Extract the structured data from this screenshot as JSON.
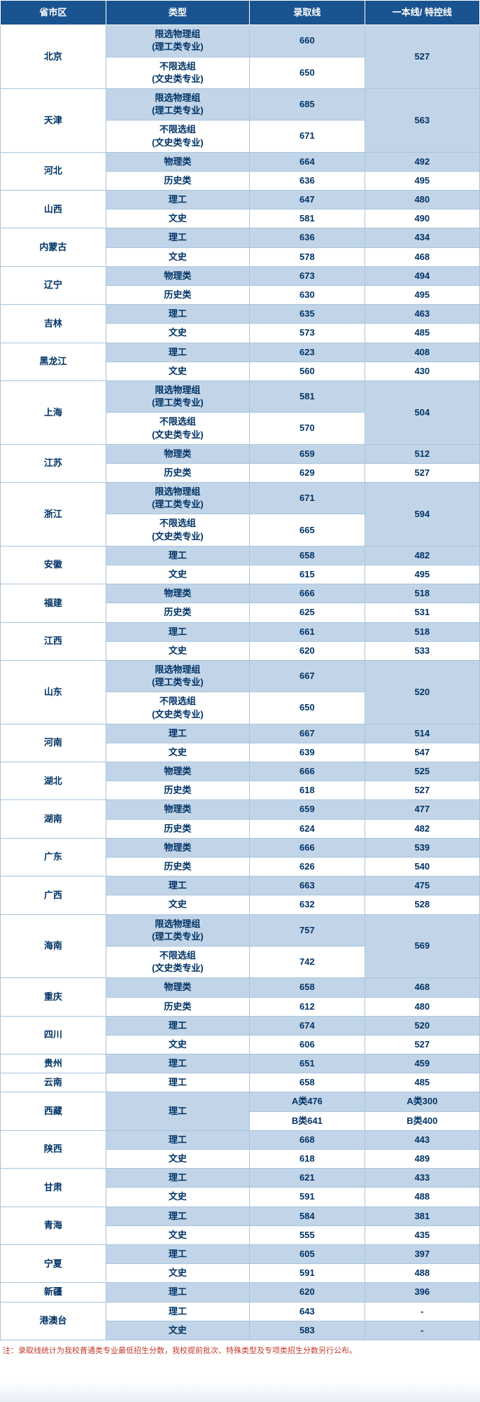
{
  "headers": {
    "province": "省市区",
    "type": "类型",
    "score": "录取线",
    "line": "一本线/\n特控线"
  },
  "note": "注：录取线统计为我校普通类专业最低招生分数，我校提前批次、特殊类型及专项类招生分数另行公布。",
  "rows": [
    {
      "province": "北京",
      "type": "限选物理组\n(理工类专业)",
      "score": "660",
      "line": "527",
      "span": 2,
      "shade": true
    },
    {
      "type": "不限选组\n(文史类专业)",
      "score": "650",
      "shade": false
    },
    {
      "province": "天津",
      "type": "限选物理组\n(理工类专业)",
      "score": "685",
      "line": "563",
      "span": 2,
      "shade": true
    },
    {
      "type": "不限选组\n(文史类专业)",
      "score": "671",
      "shade": false
    },
    {
      "province": "河北",
      "type": "物理类",
      "score": "664",
      "line": "492",
      "span": 2,
      "shade": true
    },
    {
      "type": "历史类",
      "score": "636",
      "line": "495",
      "shade": false
    },
    {
      "province": "山西",
      "type": "理工",
      "score": "647",
      "line": "480",
      "span": 2,
      "shade": true
    },
    {
      "type": "文史",
      "score": "581",
      "line": "490",
      "shade": false
    },
    {
      "province": "内蒙古",
      "type": "理工",
      "score": "636",
      "line": "434",
      "span": 2,
      "shade": true
    },
    {
      "type": "文史",
      "score": "578",
      "line": "468",
      "shade": false
    },
    {
      "province": "辽宁",
      "type": "物理类",
      "score": "673",
      "line": "494",
      "span": 2,
      "shade": true
    },
    {
      "type": "历史类",
      "score": "630",
      "line": "495",
      "shade": false
    },
    {
      "province": "吉林",
      "type": "理工",
      "score": "635",
      "line": "463",
      "span": 2,
      "shade": true
    },
    {
      "type": "文史",
      "score": "573",
      "line": "485",
      "shade": false
    },
    {
      "province": "黑龙江",
      "type": "理工",
      "score": "623",
      "line": "408",
      "span": 2,
      "shade": true
    },
    {
      "type": "文史",
      "score": "560",
      "line": "430",
      "shade": false
    },
    {
      "province": "上海",
      "type": "限选物理组\n(理工类专业)",
      "score": "581",
      "line": "504",
      "span": 2,
      "shade": true
    },
    {
      "type": "不限选组\n(文史类专业)",
      "score": "570",
      "shade": false
    },
    {
      "province": "江苏",
      "type": "物理类",
      "score": "659",
      "line": "512",
      "span": 2,
      "shade": true
    },
    {
      "type": "历史类",
      "score": "629",
      "line": "527",
      "shade": false
    },
    {
      "province": "浙江",
      "type": "限选物理组\n(理工类专业)",
      "score": "671",
      "line": "594",
      "span": 2,
      "shade": true
    },
    {
      "type": "不限选组\n(文史类专业)",
      "score": "665",
      "shade": false
    },
    {
      "province": "安徽",
      "type": "理工",
      "score": "658",
      "line": "482",
      "span": 2,
      "shade": true
    },
    {
      "type": "文史",
      "score": "615",
      "line": "495",
      "shade": false
    },
    {
      "province": "福建",
      "type": "物理类",
      "score": "666",
      "line": "518",
      "span": 2,
      "shade": true
    },
    {
      "type": "历史类",
      "score": "625",
      "line": "531",
      "shade": false
    },
    {
      "province": "江西",
      "type": "理工",
      "score": "661",
      "line": "518",
      "span": 2,
      "shade": true
    },
    {
      "type": "文史",
      "score": "620",
      "line": "533",
      "shade": false
    },
    {
      "province": "山东",
      "type": "限选物理组\n(理工类专业)",
      "score": "667",
      "line": "520",
      "span": 2,
      "shade": true
    },
    {
      "type": "不限选组\n(文史类专业)",
      "score": "650",
      "shade": false
    },
    {
      "province": "河南",
      "type": "理工",
      "score": "667",
      "line": "514",
      "span": 2,
      "shade": true
    },
    {
      "type": "文史",
      "score": "639",
      "line": "547",
      "shade": false
    },
    {
      "province": "湖北",
      "type": "物理类",
      "score": "666",
      "line": "525",
      "span": 2,
      "shade": true
    },
    {
      "type": "历史类",
      "score": "618",
      "line": "527",
      "shade": false
    },
    {
      "province": "湖南",
      "type": "物理类",
      "score": "659",
      "line": "477",
      "span": 2,
      "shade": true
    },
    {
      "type": "历史类",
      "score": "624",
      "line": "482",
      "shade": false
    },
    {
      "province": "广东",
      "type": "物理类",
      "score": "666",
      "line": "539",
      "span": 2,
      "shade": true
    },
    {
      "type": "历史类",
      "score": "626",
      "line": "540",
      "shade": false
    },
    {
      "province": "广西",
      "type": "理工",
      "score": "663",
      "line": "475",
      "span": 2,
      "shade": true
    },
    {
      "type": "文史",
      "score": "632",
      "line": "528",
      "shade": false
    },
    {
      "province": "海南",
      "type": "限选物理组\n(理工类专业)",
      "score": "757",
      "line": "569",
      "span": 2,
      "shade": true
    },
    {
      "type": "不限选组\n(文史类专业)",
      "score": "742",
      "shade": false
    },
    {
      "province": "重庆",
      "type": "物理类",
      "score": "658",
      "line": "468",
      "span": 2,
      "shade": true
    },
    {
      "type": "历史类",
      "score": "612",
      "line": "480",
      "shade": false
    },
    {
      "province": "四川",
      "type": "理工",
      "score": "674",
      "line": "520",
      "span": 2,
      "shade": true
    },
    {
      "type": "文史",
      "score": "606",
      "line": "527",
      "shade": false
    },
    {
      "province": "贵州",
      "type": "理工",
      "score": "651",
      "line": "459",
      "span": 1,
      "shade": true
    },
    {
      "province": "云南",
      "type": "理工",
      "score": "658",
      "line": "485",
      "span": 1,
      "shade": false
    },
    {
      "province": "西藏",
      "type": "理工",
      "score": "A类476",
      "line": "A类300",
      "span": 2,
      "typespan": 2,
      "shade": true
    },
    {
      "score": "B类641",
      "line": "B类400",
      "shade": false
    },
    {
      "province": "陕西",
      "type": "理工",
      "score": "668",
      "line": "443",
      "span": 2,
      "shade": true
    },
    {
      "type": "文史",
      "score": "618",
      "line": "489",
      "shade": false
    },
    {
      "province": "甘肃",
      "type": "理工",
      "score": "621",
      "line": "433",
      "span": 2,
      "shade": true
    },
    {
      "type": "文史",
      "score": "591",
      "line": "488",
      "shade": false
    },
    {
      "province": "青海",
      "type": "理工",
      "score": "584",
      "line": "381",
      "span": 2,
      "shade": true
    },
    {
      "type": "文史",
      "score": "555",
      "line": "435",
      "shade": false
    },
    {
      "province": "宁夏",
      "type": "理工",
      "score": "605",
      "line": "397",
      "span": 2,
      "shade": true
    },
    {
      "type": "文史",
      "score": "591",
      "line": "488",
      "shade": false
    },
    {
      "province": "新疆",
      "type": "理工",
      "score": "620",
      "line": "396",
      "span": 1,
      "shade": true
    },
    {
      "province": "港澳台",
      "type": "理工",
      "score": "643",
      "line": "-",
      "span": 2,
      "shade": false
    },
    {
      "type": "文史",
      "score": "583",
      "line": "-",
      "shade": true
    }
  ]
}
